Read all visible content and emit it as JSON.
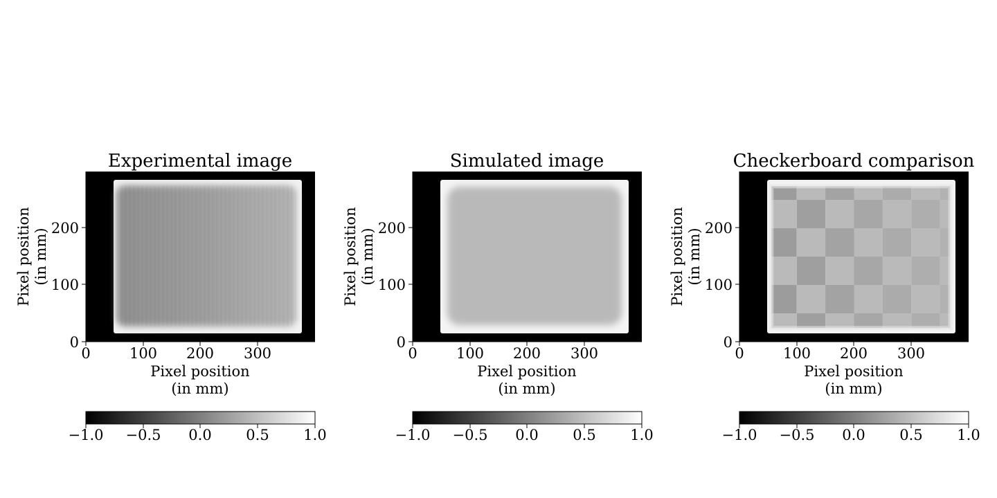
{
  "chart_data": [
    {
      "type": "heatmap",
      "title": "Experimental image",
      "xlabel": [
        "Pixel position",
        "(in mm)"
      ],
      "ylabel": [
        "Pixel position",
        "(in mm)"
      ],
      "xlim": [
        0,
        400
      ],
      "ylim": [
        0,
        300
      ],
      "xticks": [
        0,
        100,
        200,
        300
      ],
      "yticks": [
        0,
        100,
        200
      ],
      "object_extent": {
        "x": [
          48,
          376
        ],
        "y": [
          15,
          282
        ]
      },
      "interior_level": 0.18,
      "interior_gradient": {
        "left": 0.12,
        "right": 0.3
      },
      "colorbar": {
        "range": [
          -1.0,
          1.0
        ],
        "ticks": [
          "−1.0",
          "−0.5",
          "0.0",
          "0.5",
          "1.0"
        ],
        "colormap": "gray"
      }
    },
    {
      "type": "heatmap",
      "title": "Simulated image",
      "xlabel": [
        "Pixel position",
        "(in mm)"
      ],
      "ylabel": [
        "Pixel position",
        "(in mm)"
      ],
      "xlim": [
        0,
        400
      ],
      "ylim": [
        0,
        300
      ],
      "xticks": [
        0,
        100,
        200,
        300
      ],
      "yticks": [
        0,
        100,
        200
      ],
      "object_extent": {
        "x": [
          48,
          376
        ],
        "y": [
          15,
          282
        ]
      },
      "interior_level": 0.45,
      "colorbar": {
        "range": [
          -1.0,
          1.0
        ],
        "ticks": [
          "−1.0",
          "−0.5",
          "0.0",
          "0.5",
          "1.0"
        ],
        "colormap": "gray"
      }
    },
    {
      "type": "heatmap",
      "title": "Checkerboard comparison",
      "xlabel": [
        "Pixel position",
        "(in mm)"
      ],
      "ylabel": [
        "Pixel position",
        "(in mm)"
      ],
      "xlim": [
        0,
        400
      ],
      "ylim": [
        0,
        300
      ],
      "xticks": [
        0,
        100,
        200,
        300
      ],
      "yticks": [
        0,
        100,
        200
      ],
      "object_extent": {
        "x": [
          48,
          376
        ],
        "y": [
          15,
          282
        ]
      },
      "checker_square_size": 50,
      "colorbar": {
        "range": [
          -1.0,
          1.0
        ],
        "ticks": [
          "−1.0",
          "−0.5",
          "0.0",
          "0.5",
          "1.0"
        ],
        "colormap": "gray"
      }
    }
  ]
}
